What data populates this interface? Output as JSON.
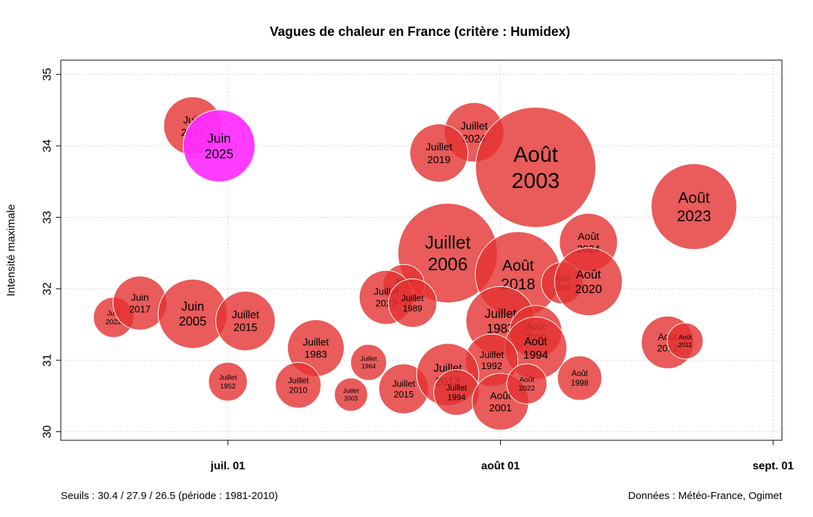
{
  "chart_data": {
    "type": "scatter",
    "title": "Vagues de chaleur en France (critère : Humidex)",
    "xlabel": "",
    "ylabel": "Intensité maximale",
    "x_ticks": [
      "juil. 01",
      "août 01",
      "sept. 01"
    ],
    "x_tick_days": [
      0,
      31,
      62
    ],
    "xlim": [
      -19,
      63
    ],
    "ylim": [
      29.88,
      35.2
    ],
    "y_ticks": [
      30,
      31,
      32,
      33,
      34,
      35
    ],
    "grid": true,
    "colors": {
      "bubble": "#e53232",
      "highlight": "#ff2dff"
    },
    "note": "Seuils : 30.4 / 27.9 / 26.5 (période : 1981-2010)",
    "source": "Données : Météo-France, Ogimet",
    "points": [
      {
        "label": "Juin",
        "year": "2019",
        "x": -4,
        "y": 34.28,
        "size": 0.42,
        "highlight": false
      },
      {
        "label": "Juillet",
        "year": "2024",
        "x": 28,
        "y": 34.19,
        "size": 0.43,
        "highlight": false
      },
      {
        "label": "Juillet",
        "year": "2019",
        "x": 24,
        "y": 33.9,
        "size": 0.42,
        "highlight": false
      },
      {
        "label": "Août",
        "year": "2003",
        "x": 35,
        "y": 33.7,
        "size": 0.87,
        "highlight": false
      },
      {
        "label": "Août",
        "year": "2023",
        "x": 53,
        "y": 33.15,
        "size": 0.62,
        "highlight": false
      },
      {
        "label": "Juillet",
        "year": "2006",
        "x": 25,
        "y": 32.5,
        "size": 0.72,
        "highlight": false
      },
      {
        "label": "Août",
        "year": "2024",
        "x": 41,
        "y": 32.65,
        "size": 0.42,
        "highlight": false
      },
      {
        "label": "Août",
        "year": "2018",
        "x": 33,
        "y": 32.2,
        "size": 0.62,
        "highlight": false
      },
      {
        "label": "Août",
        "year": "1992",
        "x": 38,
        "y": 32.08,
        "size": 0.3,
        "highlight": false
      },
      {
        "label": "Août",
        "year": "2020",
        "x": 41,
        "y": 32.1,
        "size": 0.49,
        "highlight": false
      },
      {
        "label": "Juillet",
        "year": "2022",
        "x": 20,
        "y": 32.05,
        "size": 0.3,
        "highlight": false
      },
      {
        "label": "Juillet",
        "year": "2022",
        "x": 18,
        "y": 31.88,
        "size": 0.39,
        "highlight": false
      },
      {
        "label": "Juillet",
        "year": "1989",
        "x": 21,
        "y": 31.8,
        "size": 0.35,
        "highlight": false
      },
      {
        "label": "Juin",
        "year": "2022",
        "x": -13,
        "y": 31.6,
        "size": 0.29,
        "highlight": false
      },
      {
        "label": "Juin",
        "year": "2017",
        "x": -10,
        "y": 31.8,
        "size": 0.39,
        "highlight": false
      },
      {
        "label": "Juin",
        "year": "2005",
        "x": -4,
        "y": 31.65,
        "size": 0.5,
        "highlight": false
      },
      {
        "label": "Juillet",
        "year": "2015",
        "x": 2,
        "y": 31.55,
        "size": 0.43,
        "highlight": false
      },
      {
        "label": "Juillet",
        "year": "1983",
        "x": 31,
        "y": 31.55,
        "size": 0.5,
        "highlight": false
      },
      {
        "label": "Août",
        "year": "2012",
        "x": 35,
        "y": 31.4,
        "size": 0.38,
        "highlight": false
      },
      {
        "label": "Août",
        "year": "1994",
        "x": 35,
        "y": 31.17,
        "size": 0.45,
        "highlight": false
      },
      {
        "label": "Juillet",
        "year": "1992",
        "x": 30,
        "y": 31.0,
        "size": 0.38,
        "highlight": false
      },
      {
        "label": "Août",
        "year": "2012",
        "x": 50,
        "y": 31.25,
        "size": 0.38,
        "highlight": false
      },
      {
        "label": "Août",
        "year": "2011",
        "x": 52,
        "y": 31.27,
        "size": 0.26,
        "highlight": false
      },
      {
        "label": "Juillet",
        "year": "1983",
        "x": 10,
        "y": 31.17,
        "size": 0.41,
        "highlight": false
      },
      {
        "label": "Juillet",
        "year": "1964",
        "x": 16,
        "y": 30.97,
        "size": 0.26,
        "highlight": false
      },
      {
        "label": "Juillet",
        "year": "1952",
        "x": 0,
        "y": 30.7,
        "size": 0.28,
        "highlight": false
      },
      {
        "label": "Juillet",
        "year": "2010",
        "x": 8,
        "y": 30.65,
        "size": 0.33,
        "highlight": false
      },
      {
        "label": "Juillet",
        "year": "2003",
        "x": 14,
        "y": 30.52,
        "size": 0.24,
        "highlight": false
      },
      {
        "label": "Juillet",
        "year": "2015",
        "x": 20,
        "y": 30.6,
        "size": 0.36,
        "highlight": false
      },
      {
        "label": "Juillet",
        "year": "2013",
        "x": 25,
        "y": 30.8,
        "size": 0.45,
        "highlight": false
      },
      {
        "label": "Juillet",
        "year": "1994",
        "x": 26,
        "y": 30.55,
        "size": 0.33,
        "highlight": false
      },
      {
        "label": "Août",
        "year": "2001",
        "x": 31,
        "y": 30.42,
        "size": 0.41,
        "highlight": false
      },
      {
        "label": "Août",
        "year": "2022",
        "x": 34,
        "y": 30.67,
        "size": 0.29,
        "highlight": false
      },
      {
        "label": "Août",
        "year": "1998",
        "x": 40,
        "y": 30.75,
        "size": 0.32,
        "highlight": false
      },
      {
        "label": "Juin",
        "year": "2025",
        "x": -1,
        "y": 34.0,
        "size": 0.52,
        "highlight": true
      }
    ]
  }
}
